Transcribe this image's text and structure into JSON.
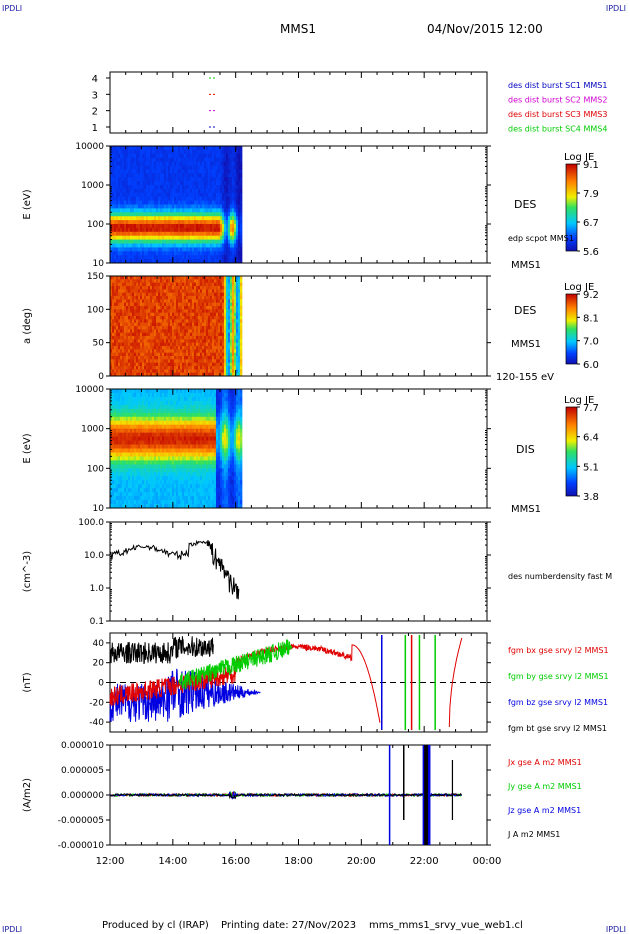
{
  "header": {
    "corner_label": "IPDLI",
    "spacecraft": "MMS1",
    "datetime": "04/Nov/2015 12:00"
  },
  "footer": {
    "produced_by": "Produced by cl (IRAP)",
    "printing_date": "Printing date: 27/Nov/2023",
    "source": "mms_mms1_srvy_vue_web1.cl"
  },
  "x_axis": {
    "ticks": [
      "12:00",
      "14:00",
      "16:00",
      "18:00",
      "20:00",
      "22:00",
      "00:00"
    ]
  },
  "colors": {
    "red": "#e00000",
    "green": "#00cc00",
    "blue": "#0000e0",
    "black": "#000000",
    "magenta": "#d000d0"
  },
  "chart_data": [
    {
      "type": "line",
      "panel": "availability",
      "y_ticks": [
        "4",
        "3",
        "2",
        "1"
      ],
      "series": [
        {
          "name": "des dist burst SC1 MMS1",
          "level": 1,
          "color": "#0000c0"
        },
        {
          "name": "des dist burst SC2 MMS2",
          "level": 2,
          "color": "#d000d0"
        },
        {
          "name": "des dist burst SC3 MMS3",
          "level": 3,
          "color": "#e00000"
        },
        {
          "name": "des dist burst SC4 MMS4",
          "level": 4,
          "color": "#00cc00"
        }
      ]
    },
    {
      "type": "heatmap",
      "panel": "des-energy",
      "ylabel": "E (eV)",
      "y_ticks": [
        "10000",
        "1000",
        "100",
        "10"
      ],
      "label": "DES",
      "sub_label": "edp scpot MMS1",
      "bottom_label": "MMS1",
      "colorbar": {
        "title": "Log JE",
        "ticks": [
          "9.1",
          "7.9",
          "6.7",
          "5.6"
        ]
      }
    },
    {
      "type": "heatmap",
      "panel": "des-pitch-angle",
      "ylabel": "a (deg)",
      "y_ticks": [
        "150",
        "100",
        "50",
        "0"
      ],
      "label": "DES",
      "sub_label": "MMS1",
      "bottom_label": "120-155 eV",
      "colorbar": {
        "title": "Log JE",
        "ticks": [
          "9.2",
          "8.1",
          "7.0",
          "6.0"
        ]
      }
    },
    {
      "type": "heatmap",
      "panel": "dis-energy",
      "ylabel": "E (eV)",
      "y_ticks": [
        "10000",
        "1000",
        "100",
        "10"
      ],
      "label": "DIS",
      "bottom_label": "MMS1",
      "colorbar": {
        "title": "Log JE",
        "ticks": [
          "7.7",
          "6.4",
          "5.1",
          "3.8"
        ]
      }
    },
    {
      "type": "line",
      "panel": "density",
      "ylabel": "(cm^-3)",
      "y_ticks": [
        "100.0",
        "10.0",
        "1.0",
        "0.1"
      ],
      "series": [
        {
          "name": "des numberdensity fast M",
          "color": "#000000"
        }
      ]
    },
    {
      "type": "line",
      "panel": "magnetic-field",
      "ylabel": "(nT)",
      "y_ticks": [
        "40",
        "20",
        "0",
        "-20",
        "-40"
      ],
      "series": [
        {
          "name": "fgm bx gse srvy l2 MMS1",
          "color": "#e00000"
        },
        {
          "name": "fgm by gse srvy l2 MMS1",
          "color": "#00cc00"
        },
        {
          "name": "fgm bz gse srvy l2 MMS1",
          "color": "#0000e0"
        },
        {
          "name": "fgm bt gse srvy l2 MMS1",
          "color": "#000000"
        }
      ]
    },
    {
      "type": "line",
      "panel": "current-density",
      "ylabel": "(A/m2)",
      "y_ticks": [
        "0.000010",
        "0.000005",
        "0.000000",
        "-0.000005",
        "-0.000010"
      ],
      "series": [
        {
          "name": "Jx gse A m2 MMS1",
          "color": "#e00000"
        },
        {
          "name": "Jy gse A m2 MMS1",
          "color": "#00cc00"
        },
        {
          "name": "Jz gse A m2 MMS1",
          "color": "#0000e0"
        },
        {
          "name": "J A m2 MMS1",
          "color": "#000000"
        }
      ]
    }
  ]
}
